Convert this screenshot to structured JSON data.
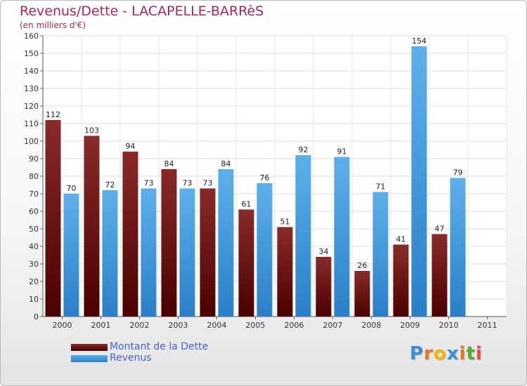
{
  "header": {
    "title": "Revenus/Dette - LACAPELLE-BARRèS",
    "subtitle": "(en milliers d'€)"
  },
  "legend": {
    "items": [
      {
        "label": "Montant de la Dette",
        "color": "#6b0e14"
      },
      {
        "label": "Revenus",
        "color": "#4aa3e6"
      }
    ]
  },
  "logo": {
    "text": "Proxiti",
    "letters": [
      "P",
      "r",
      "o",
      "x",
      "i",
      "t",
      "i"
    ],
    "colors": [
      "#3c8fd4",
      "#e87722",
      "#f2b800",
      "#3c8fd4",
      "#e87722",
      "#5aa832",
      "#e05050"
    ]
  },
  "colors": {
    "dette_top": "#8a2a2a",
    "dette_bottom": "#4a0000",
    "revenus_top": "#5eb0ea",
    "revenus_bottom": "#2a80c8",
    "title": "#a3285e",
    "legend_text": "#4a5fd8"
  },
  "chart_data": {
    "type": "bar",
    "categories": [
      "2000",
      "2001",
      "2002",
      "2003",
      "2004",
      "2005",
      "2006",
      "2007",
      "2008",
      "2009",
      "2010",
      "2011"
    ],
    "series": [
      {
        "name": "Montant de la Dette",
        "values": [
          112,
          103,
          94,
          84,
          73,
          61,
          51,
          34,
          26,
          41,
          47,
          null
        ]
      },
      {
        "name": "Revenus",
        "values": [
          70,
          72,
          73,
          73,
          84,
          76,
          92,
          91,
          71,
          154,
          79,
          null
        ]
      }
    ],
    "ylim": [
      0,
      160
    ],
    "yticks": [
      0,
      10,
      20,
      30,
      40,
      50,
      60,
      70,
      80,
      90,
      100,
      110,
      120,
      130,
      140,
      150,
      160
    ],
    "grid": true,
    "title": "Revenus/Dette - LACAPELLE-BARRèS",
    "ylabel": "(en milliers d'€)"
  }
}
